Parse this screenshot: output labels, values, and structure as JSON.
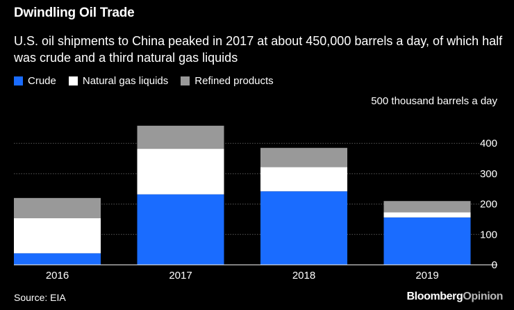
{
  "header": {
    "title": "Dwindling Oil Trade",
    "subtitle": "U.S. oil shipments to China peaked in 2017 at about 450,000 barrels a day, of which half was crude and a third natural gas liquids"
  },
  "footer": {
    "source": "Source: EIA",
    "brand_main": "Bloomberg",
    "brand_accent": "Opinion"
  },
  "colors": {
    "background": "#000000",
    "crude": "#1a6cff",
    "ngl": "#ffffff",
    "refined": "#999999",
    "grid": "#5a5a5a"
  },
  "chart_data": {
    "type": "bar",
    "stacked": true,
    "categories": [
      "2016",
      "2017",
      "2018",
      "2019"
    ],
    "series": [
      {
        "name": "Crude",
        "color": "#1a6cff",
        "values": [
          38,
          232,
          242,
          156
        ]
      },
      {
        "name": "Natural gas liquids",
        "color": "#ffffff",
        "values": [
          116,
          150,
          80,
          17
        ]
      },
      {
        "name": "Refined products",
        "color": "#999999",
        "values": [
          66,
          76,
          63,
          37
        ]
      }
    ],
    "yticks": [
      0,
      100,
      200,
      300,
      400
    ],
    "yunit": "500 thousand barrels a day",
    "ylim": [
      0,
      500
    ],
    "legend": "top-left"
  }
}
